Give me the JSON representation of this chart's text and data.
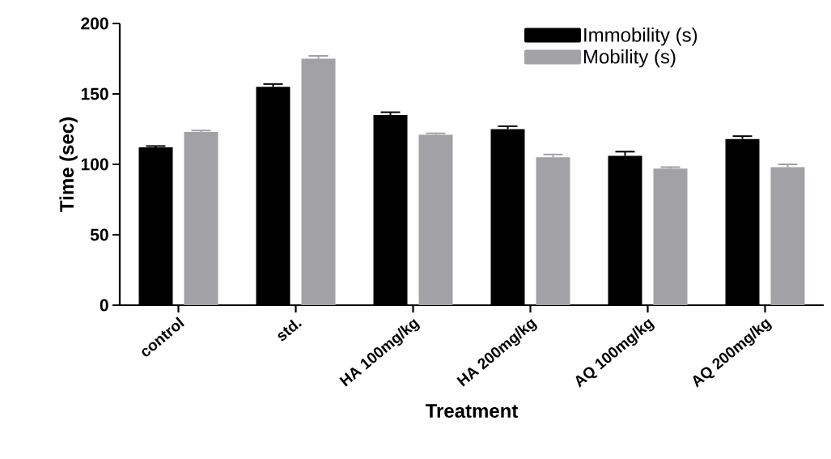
{
  "chart_data": {
    "type": "bar",
    "xlabel": "Treatment",
    "ylabel": "Time (sec)",
    "categories": [
      "control",
      "std.",
      "HA 100mg/kg",
      "HA 200mg/kg",
      "AQ 100mg/kg",
      "AQ 200mg/kg"
    ],
    "series": [
      {
        "name": "Immobility (s)",
        "color": "#000000",
        "values": [
          112,
          155,
          135,
          125,
          106,
          118
        ],
        "errors": [
          1,
          2,
          2,
          2,
          3,
          2
        ]
      },
      {
        "name": "Mobility (s)",
        "color": "#a2a1a6",
        "values": [
          123,
          175,
          121,
          105,
          97,
          98
        ],
        "errors": [
          1,
          2,
          1,
          2,
          1,
          2
        ]
      }
    ],
    "ylim": [
      0,
      200
    ],
    "yticks": [
      0,
      50,
      100,
      150,
      200
    ],
    "grid": false,
    "legend": "top right"
  }
}
